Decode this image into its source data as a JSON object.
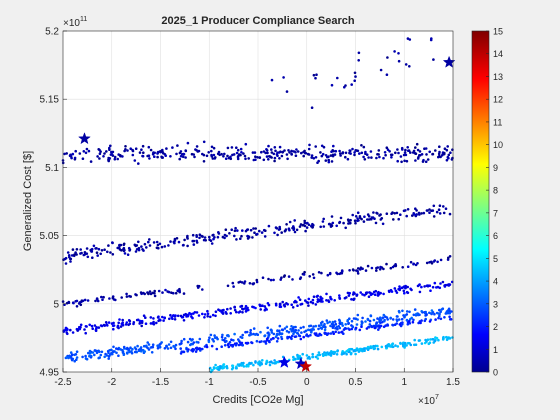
{
  "chart_data": {
    "type": "scatter",
    "title": "2025_1 Producer Compliance Search",
    "xlabel": "Credits [CO2e Mg]",
    "ylabel": "Generalized Cost [$]",
    "xlim": [
      -25000000,
      15000000
    ],
    "ylim": [
      495000000000,
      520000000000
    ],
    "x_ticks": [
      -25000000,
      -20000000,
      -15000000,
      -10000000,
      -5000000,
      0,
      5000000,
      10000000,
      15000000
    ],
    "x_tick_labels": [
      "-2.5",
      "-2",
      "-1.5",
      "-1",
      "-0.5",
      "0",
      "0.5",
      "1",
      "1.5"
    ],
    "x_exponent": {
      "base": "×10",
      "power": "7"
    },
    "y_ticks": [
      495000000000,
      500000000000,
      505000000000,
      510000000000,
      515000000000,
      520000000000
    ],
    "y_tick_labels": [
      "4.95",
      "5",
      "5.05",
      "5.1",
      "5.15",
      "5.2"
    ],
    "y_exponent": {
      "base": "×10",
      "power": "11"
    },
    "grid": true,
    "colorbar": {
      "range": [
        0,
        15
      ],
      "ticks": [
        0,
        1,
        2,
        3,
        4,
        5,
        6,
        7,
        8,
        9,
        10,
        11,
        12,
        13,
        14,
        15
      ],
      "tick_labels": [
        "0",
        "1",
        "2",
        "3",
        "4",
        "5",
        "6",
        "7",
        "8",
        "9",
        "10",
        "11",
        "12",
        "13",
        "14",
        "15"
      ],
      "colormap": "jet"
    },
    "colors": {
      "low": "#00008f",
      "dot": "#0000ff",
      "mid": "#00ffff",
      "high": "#800000",
      "background": "#f0f0f0",
      "axes_bg": "#ffffff",
      "grid": "#dfdfdf"
    },
    "series": [
      {
        "marker": "dot",
        "clusters": [
          {
            "x0": -25000000,
            "x1": 15000000,
            "y_at_x0": 511000000000,
            "y_at_x1": 511000000000,
            "spread": 900000000,
            "n": 360,
            "color_value": 0.5
          },
          {
            "x0": -25000000,
            "x1": 15000000,
            "y_at_x0": 503500000000,
            "y_at_x1": 507000000000,
            "spread": 700000000,
            "n": 300,
            "color_value": 0.5
          },
          {
            "x0": -25000000,
            "x1": 15000000,
            "y_at_x0": 500000000000,
            "y_at_x1": 503300000000,
            "spread": 350000000,
            "n": 160,
            "color_value": 0.5
          },
          {
            "x0": -25000000,
            "x1": 15000000,
            "y_at_x0": 498000000000,
            "y_at_x1": 501500000000,
            "spread": 450000000,
            "n": 320,
            "color_value": 1.5
          },
          {
            "x0": -25000000,
            "x1": 15000000,
            "y_at_x0": 496000000000,
            "y_at_x1": 499500000000,
            "spread": 550000000,
            "n": 420,
            "color_value": 3.0
          },
          {
            "x0": -10000000,
            "x1": 15000000,
            "y_at_x0": 495200000000,
            "y_at_x1": 497500000000,
            "spread": 300000000,
            "n": 260,
            "color_value": 4.6
          },
          {
            "x0": -13000000,
            "x1": 15000000,
            "y_at_x0": 496500000000,
            "y_at_x1": 499000000000,
            "spread": 250000000,
            "n": 170,
            "color_value": 2.3
          },
          {
            "x0": -5000000,
            "x1": 15000000,
            "y_at_x0": 514500000000,
            "y_at_x1": 519500000000,
            "spread": 3000000000,
            "n": 30,
            "color_value": 0.5
          }
        ]
      },
      {
        "marker": "star",
        "points": [
          {
            "x": -22800000,
            "y": 512100000000,
            "c": 0.5
          },
          {
            "x": 14600000,
            "y": 517700000000,
            "c": 0.5
          },
          {
            "x": -2300000,
            "y": 495700000000,
            "c": 1.5
          },
          {
            "x": -600000,
            "y": 495600000000,
            "c": 1.0
          },
          {
            "x": -100000,
            "y": 495400000000,
            "c": 14.0
          }
        ]
      }
    ]
  }
}
